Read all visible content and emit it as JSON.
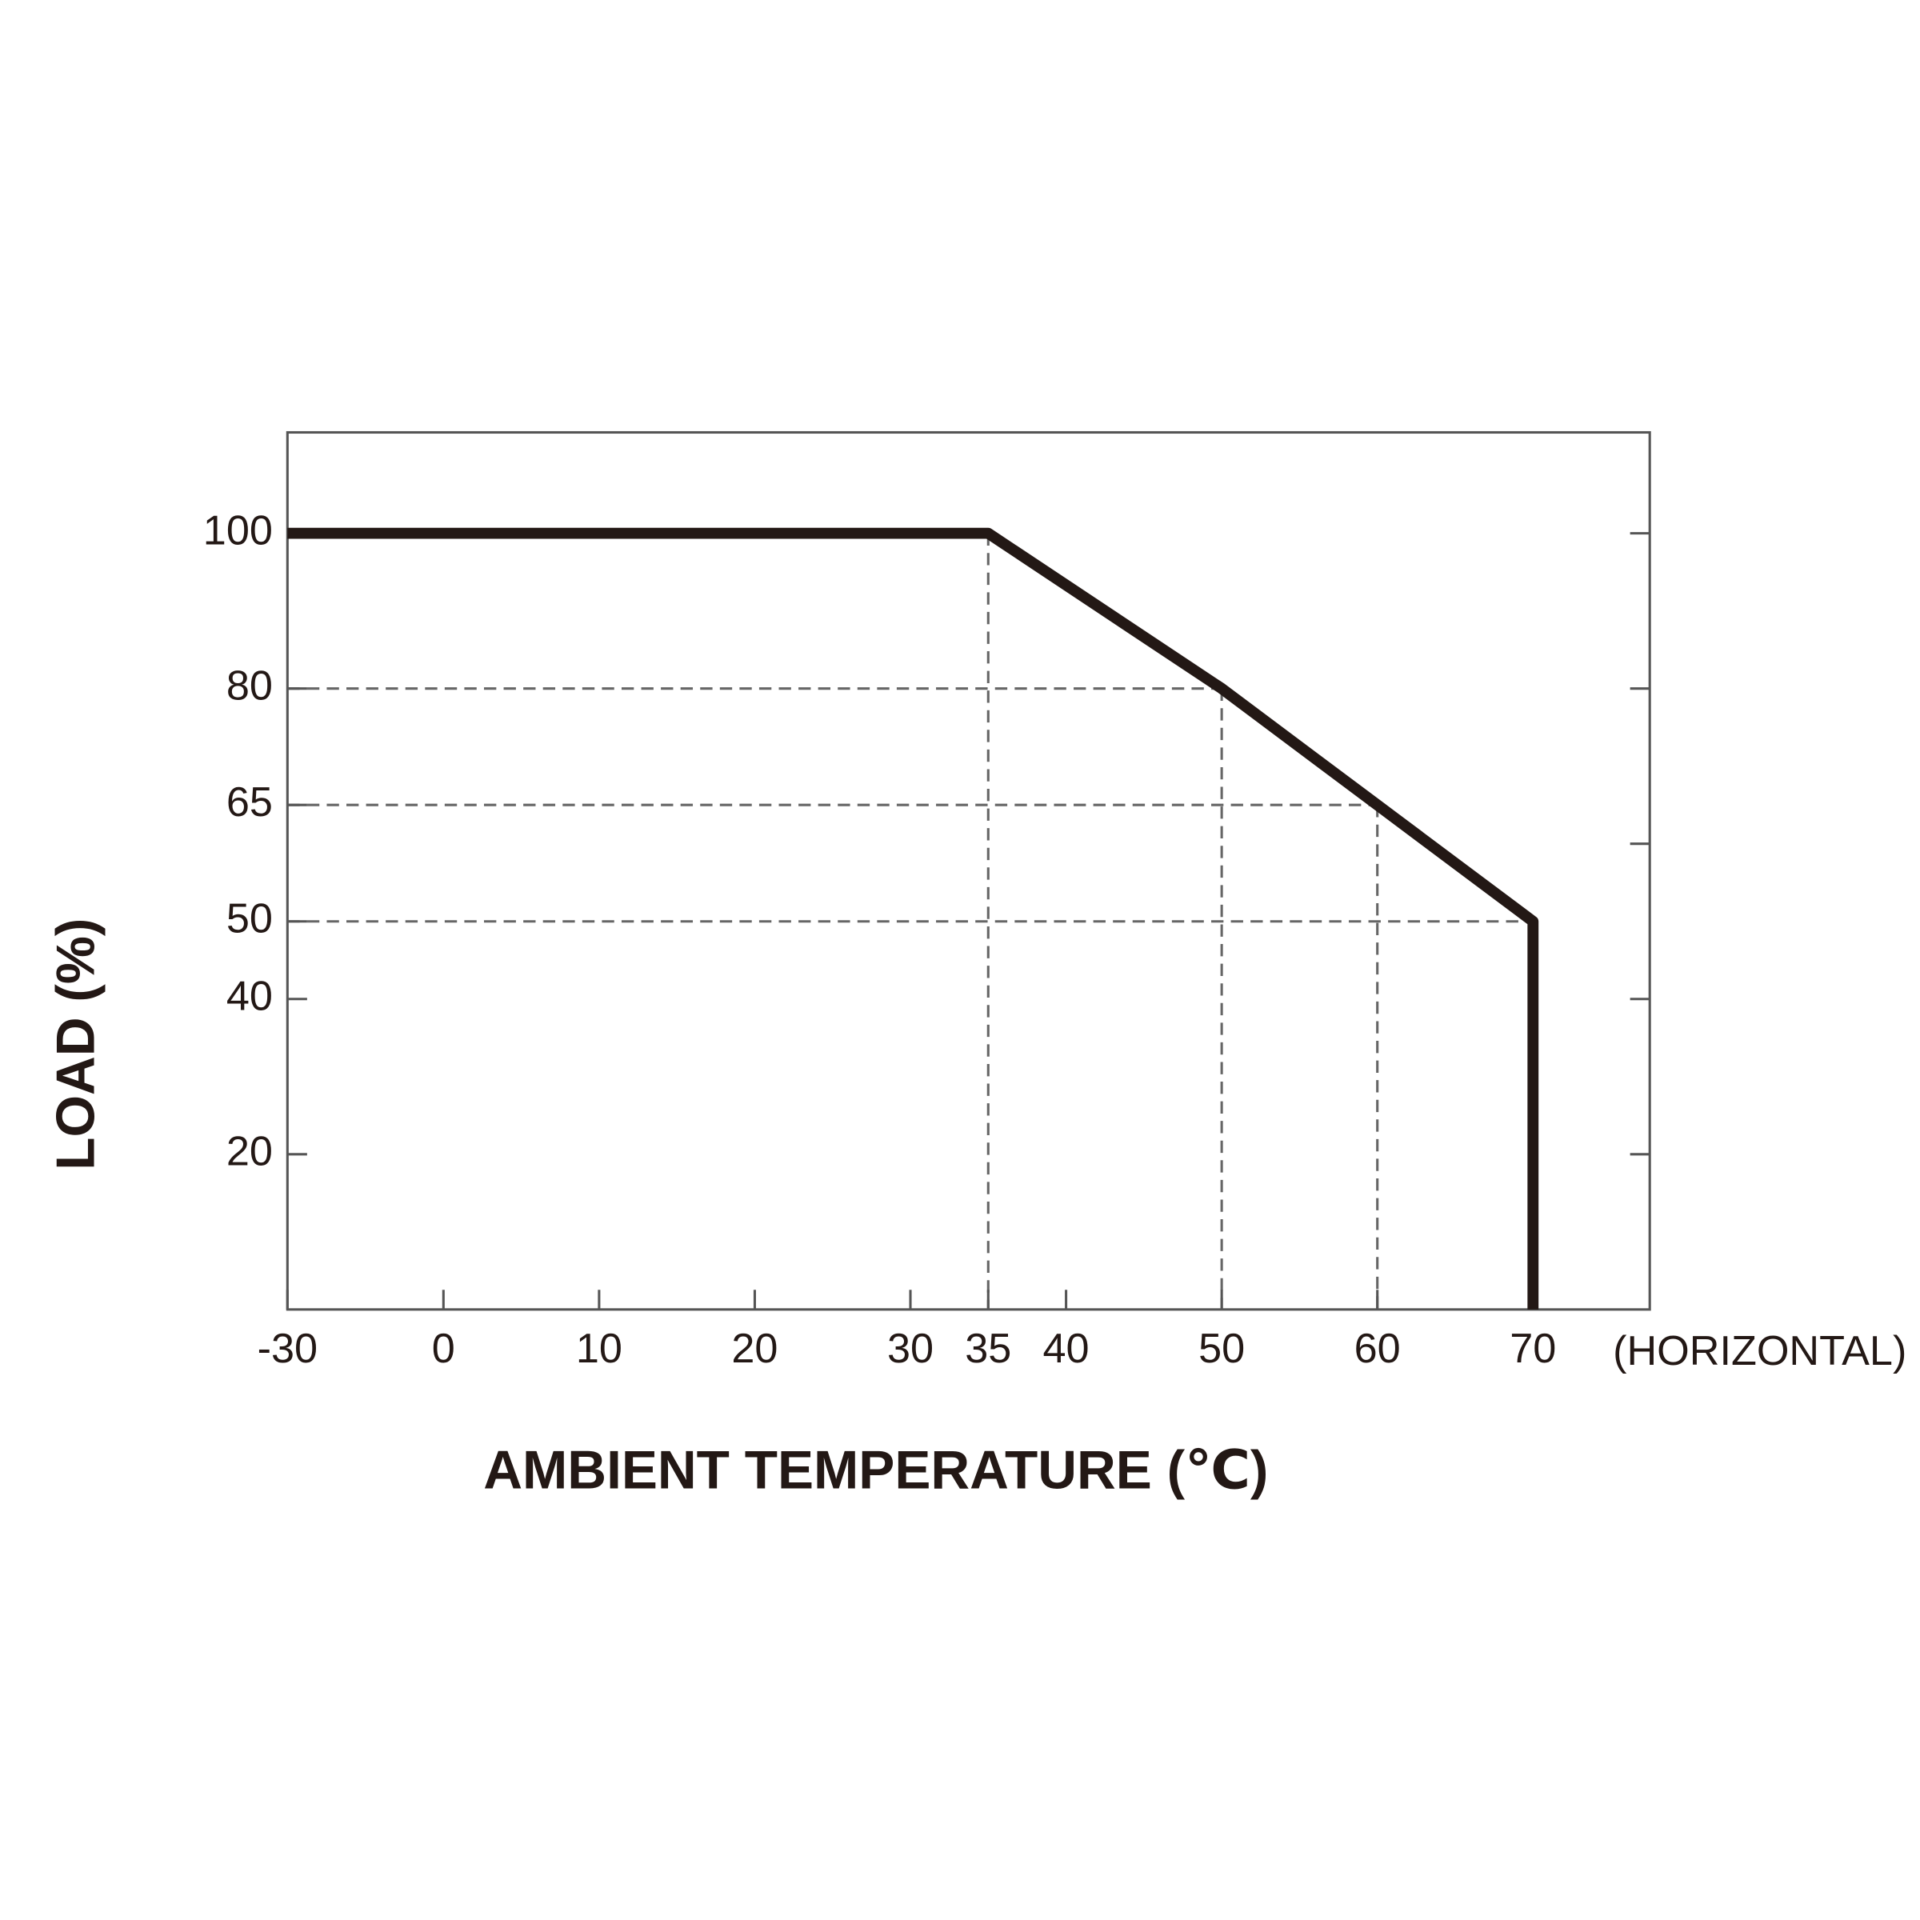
{
  "chart_data": {
    "type": "line",
    "x_label": "AMBIENT TEMPERATURE (℃)",
    "y_label": "LOAD (%)",
    "annotation": "(HORIZONTAL)",
    "x": [
      -30,
      35,
      50,
      60,
      70,
      70
    ],
    "values": [
      100,
      100,
      80,
      65,
      50,
      0
    ],
    "color": "#231815",
    "xlim": [
      -30,
      77.5
    ],
    "xticks": [
      -30,
      0,
      10,
      20,
      30,
      35,
      40,
      50,
      60,
      70
    ],
    "ylim": [
      0,
      113
    ],
    "yticks": [
      20,
      40,
      50,
      65,
      80,
      100
    ],
    "y2lim": [
      0,
      113
    ],
    "y2ticks": [
      20,
      40,
      60,
      80,
      100
    ]
  }
}
